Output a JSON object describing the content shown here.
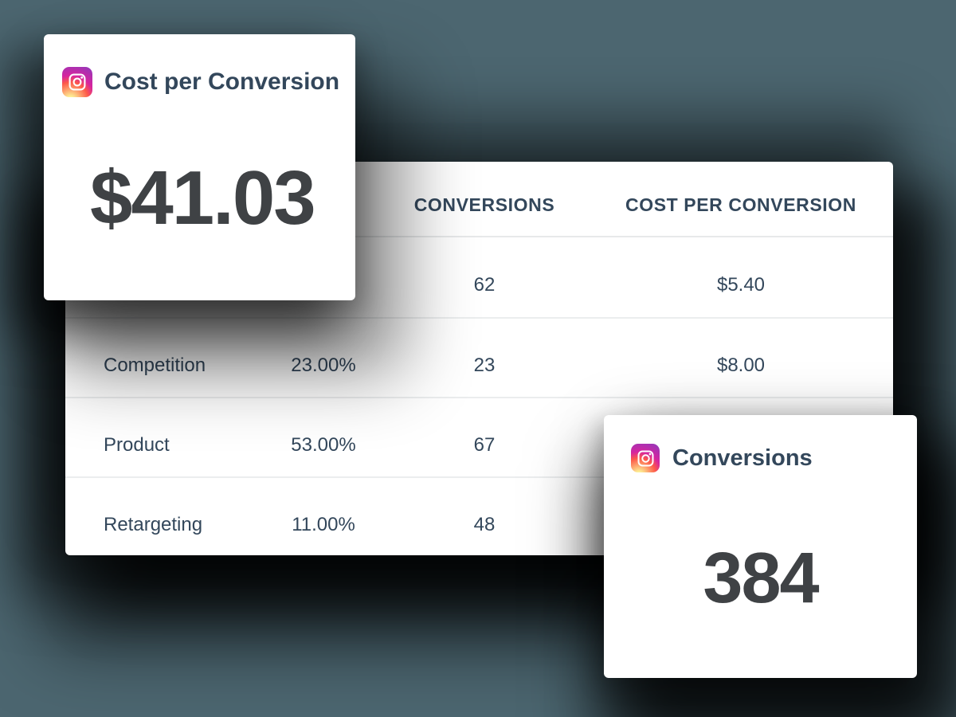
{
  "page": {
    "background_color": "#4C6670"
  },
  "cards": {
    "cost_per_conversion": {
      "icon": "instagram",
      "title": "Cost per Conversion",
      "value": "$41.03"
    },
    "conversions": {
      "icon": "instagram",
      "title": "Conversions",
      "value": "384"
    }
  },
  "table": {
    "headers": {
      "name": "",
      "percent": "",
      "conversions": "CONVERSIONS",
      "cost": "COST PER CONVERSION"
    },
    "rows": [
      {
        "name": "",
        "percent": "",
        "conversions": "62",
        "cost": "$5.40"
      },
      {
        "name": "Competition",
        "percent": "23.00%",
        "conversions": "23",
        "cost": "$8.00"
      },
      {
        "name": "Product",
        "percent": "53.00%",
        "conversions": "67",
        "cost": ""
      },
      {
        "name": "Retargeting",
        "percent": "11.00%",
        "conversions": "48",
        "cost": ""
      }
    ]
  },
  "colors": {
    "background": "#4C6670",
    "card_background": "#FFFFFF",
    "navy_text": "#33475B",
    "metric_text": "#3F4245",
    "row_divider": "#EBEDEE",
    "instagram_gradient": [
      "#FDF497",
      "#FD5949",
      "#D6249F",
      "#9B36B7"
    ]
  }
}
